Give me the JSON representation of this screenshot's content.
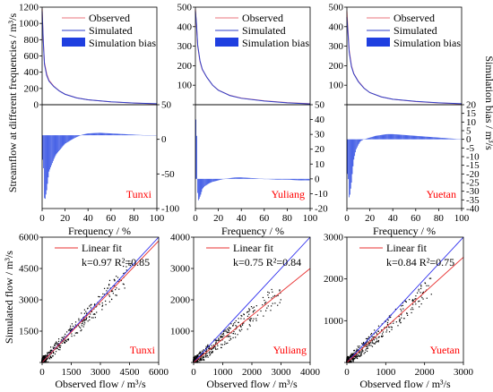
{
  "figure": {
    "top_ylabel": "Streamflow at different frequencies / m³/s",
    "right_ylabel": "Simulation bias / m³/s",
    "bottom_ylabel": "Simulated flow / m³/s",
    "legend_top": [
      "Observed",
      "Simulated",
      "Simulation bias"
    ],
    "legend_bottom_label": "Linear fit",
    "colors": {
      "observed": "#e8747c",
      "simulated": "#2f3fc9",
      "bias": "#1f3fe0",
      "fit": "#e83030",
      "one_to_one": "#2a2aee",
      "station": "#ff0000",
      "points": "#000000"
    }
  },
  "chart_data": [
    {
      "type": "line",
      "panel": "Tunxi-fdc",
      "station_label": "Tunxi",
      "xlabel": "Frequency / %",
      "xlim": [
        0,
        100
      ],
      "xticks": [
        "0",
        "20",
        "40",
        "60",
        "80",
        "100"
      ],
      "top_ylim": [
        0,
        1200
      ],
      "top_yticks": [
        "0",
        "200",
        "400",
        "600",
        "800",
        "1000",
        "1200"
      ],
      "bias_ylim": [
        -120,
        50
      ],
      "bias_yticks": [
        "50",
        "0",
        "-50",
        "-100"
      ],
      "series": [
        {
          "name": "Observed",
          "x": [
            0,
            1,
            2,
            4,
            6,
            10,
            15,
            20,
            30,
            40,
            60,
            80,
            100
          ],
          "values": [
            1180,
            800,
            520,
            380,
            300,
            230,
            170,
            130,
            85,
            60,
            35,
            20,
            10
          ]
        },
        {
          "name": "Simulated",
          "x": [
            0,
            1,
            2,
            4,
            6,
            10,
            15,
            20,
            30,
            40,
            60,
            80,
            100
          ],
          "values": [
            1150,
            780,
            500,
            360,
            290,
            225,
            168,
            128,
            84,
            60,
            36,
            21,
            12
          ]
        },
        {
          "name": "Simulation bias",
          "x": [
            1,
            2,
            3,
            4,
            5,
            6,
            8,
            10,
            12,
            15,
            18,
            20,
            25,
            30,
            35,
            40,
            50,
            60,
            70,
            80,
            90,
            100
          ],
          "values": [
            -40,
            -110,
            -100,
            -90,
            -75,
            -60,
            -50,
            -40,
            -32,
            -25,
            -18,
            -14,
            -8,
            -3,
            1,
            3,
            4,
            3,
            2,
            1,
            0,
            0
          ]
        }
      ]
    },
    {
      "type": "line",
      "panel": "Yuliang-fdc",
      "station_label": "Yuliang",
      "xlabel": "Frequency / %",
      "xlim": [
        0,
        100
      ],
      "xticks": [
        "0",
        "20",
        "40",
        "60",
        "80",
        "100"
      ],
      "top_ylim": [
        0,
        500
      ],
      "top_yticks": [
        "0",
        "100",
        "200",
        "300",
        "400",
        "500"
      ],
      "bias_ylim": [
        -20,
        50
      ],
      "bias_yticks": [
        "50",
        "40",
        "30",
        "20",
        "10",
        "0",
        "-10",
        "-20"
      ],
      "series": [
        {
          "name": "Observed",
          "x": [
            0,
            1,
            2,
            4,
            6,
            10,
            15,
            20,
            30,
            40,
            60,
            80,
            100
          ],
          "values": [
            490,
            400,
            300,
            220,
            180,
            140,
            100,
            75,
            48,
            34,
            20,
            11,
            5
          ]
        },
        {
          "name": "Simulated",
          "x": [
            0,
            1,
            2,
            4,
            6,
            10,
            15,
            20,
            30,
            40,
            60,
            80,
            100
          ],
          "values": [
            480,
            410,
            305,
            225,
            182,
            140,
            100,
            74,
            47,
            33,
            19,
            10,
            4
          ]
        },
        {
          "name": "Simulation bias",
          "x": [
            1,
            2,
            3,
            4,
            5,
            6,
            8,
            10,
            12,
            15,
            20,
            25,
            30,
            35,
            40,
            50,
            60,
            70,
            80,
            90,
            100
          ],
          "values": [
            40,
            -15,
            -14,
            -12,
            -10,
            -7,
            -5,
            -4,
            -3,
            -2,
            -1,
            0,
            0.5,
            1,
            1,
            0.5,
            0,
            -0.5,
            -0.5,
            -1,
            -1
          ]
        }
      ]
    },
    {
      "type": "line",
      "panel": "Yuetan-fdc",
      "station_label": "Yuetan",
      "xlabel": "Frequency / %",
      "xlim": [
        0,
        100
      ],
      "xticks": [
        "0",
        "20",
        "40",
        "60",
        "80",
        "100"
      ],
      "top_ylim": [
        0,
        500
      ],
      "top_yticks": [
        "0",
        "100",
        "200",
        "300",
        "400",
        "500"
      ],
      "bias_ylim": [
        -40,
        20
      ],
      "bias_yticks": [
        "20",
        "15",
        "10",
        "5",
        "0",
        "-5",
        "-10",
        "-15",
        "-20",
        "-25",
        "-30",
        "-35",
        "-40"
      ],
      "series": [
        {
          "name": "Observed",
          "x": [
            0,
            1,
            2,
            4,
            6,
            10,
            15,
            20,
            30,
            40,
            60,
            80,
            100
          ],
          "values": [
            480,
            380,
            280,
            200,
            160,
            120,
            85,
            62,
            40,
            28,
            16,
            9,
            4
          ]
        },
        {
          "name": "Simulated",
          "x": [
            0,
            1,
            2,
            4,
            6,
            10,
            15,
            20,
            30,
            40,
            60,
            80,
            100
          ],
          "values": [
            450,
            360,
            270,
            195,
            158,
            118,
            84,
            62,
            40,
            28,
            17,
            10,
            5
          ]
        },
        {
          "name": "Simulation bias",
          "x": [
            1,
            2,
            3,
            4,
            5,
            6,
            8,
            10,
            12,
            15,
            20,
            25,
            30,
            35,
            40,
            50,
            60,
            70,
            80,
            90,
            100
          ],
          "values": [
            -20,
            -35,
            -30,
            -25,
            -18,
            -12,
            -6,
            -3,
            -1,
            0,
            1,
            2,
            2.5,
            3,
            3,
            2.5,
            2,
            1.5,
            1,
            0.5,
            0
          ]
        }
      ]
    },
    {
      "type": "scatter",
      "panel": "Tunxi-scatter",
      "station_label": "Tunxi",
      "xlabel": "Observed flow / m³/s",
      "xlim": [
        0,
        6000
      ],
      "ylim": [
        0,
        6000
      ],
      "xticks": [
        "0",
        "1500",
        "3000",
        "4500",
        "6000"
      ],
      "yticks": [
        "0",
        "1500",
        "3000",
        "4500",
        "6000"
      ],
      "fit_text": "k=0.97  R²=0.85",
      "fit_slope": 0.97,
      "points_xmax": 4600
    },
    {
      "type": "scatter",
      "panel": "Yuliang-scatter",
      "station_label": "Yuliang",
      "xlabel": "Observed flow / m³/s",
      "xlim": [
        0,
        4000
      ],
      "ylim": [
        0,
        4000
      ],
      "xticks": [
        "0",
        "1000",
        "2000",
        "3000",
        "4000"
      ],
      "yticks": [
        "0",
        "1000",
        "2000",
        "3000",
        "4000"
      ],
      "fit_text": "k=0.75  R²=0.84",
      "fit_slope": 0.75,
      "points_xmax": 3000
    },
    {
      "type": "scatter",
      "panel": "Yuetan-scatter",
      "station_label": "Yuetan",
      "xlabel": "Observed flow / m³/s",
      "xlim": [
        0,
        3000
      ],
      "ylim": [
        0,
        3000
      ],
      "xticks": [
        "0",
        "1000",
        "2000",
        "3000"
      ],
      "yticks": [
        "0",
        "1000",
        "2000",
        "3000"
      ],
      "fit_text": "k=0.84  R²=0.75",
      "fit_slope": 0.84,
      "points_xmax": 2200
    }
  ]
}
